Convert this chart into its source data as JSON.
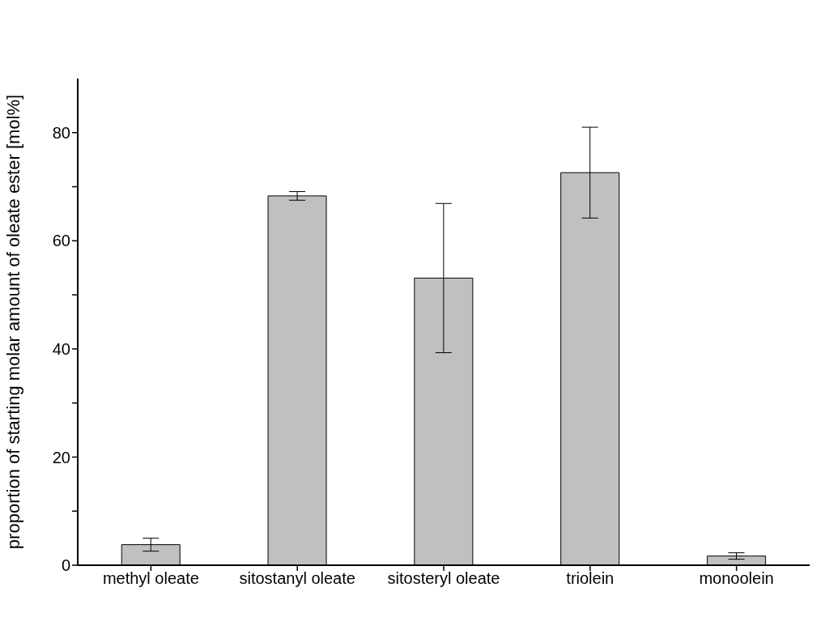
{
  "chart_data": {
    "type": "bar",
    "ylabel": "proportion of starting molar amount of oleate ester [mol%]",
    "categories": [
      "methyl oleate",
      "sitostanyl oleate",
      "sitosteryl oleate",
      "triolein",
      "monoolein"
    ],
    "values": [
      3.8,
      68.3,
      53.1,
      72.6,
      1.7
    ],
    "errors": [
      1.2,
      0.8,
      13.8,
      8.4,
      0.6
    ],
    "color": "#c0c0c0",
    "ylim": [
      0,
      90
    ],
    "yticks": [
      0,
      {
        "value": 10,
        "label": null
      },
      20,
      {
        "value": 30,
        "label": null
      },
      40,
      {
        "value": 50,
        "label": null
      },
      60,
      {
        "value": 70,
        "label": null
      },
      80
    ],
    "grid": false
  }
}
